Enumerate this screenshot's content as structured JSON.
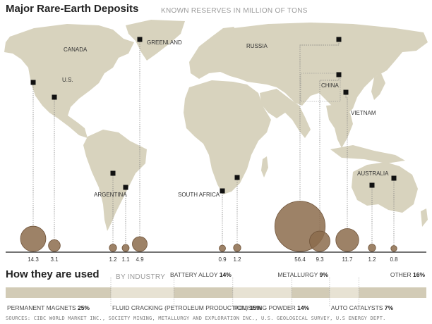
{
  "header": {
    "title": "Major Rare-Earth Deposits",
    "subtitle": "KNOWN RESERVES IN MILLION OF TONS"
  },
  "uses": {
    "title": "How they are used",
    "subtitle": "BY INDUSTRY"
  },
  "source": "SOURCES: CIBC WORLD MARKET INC., SOCIETY MINING, METALLURGY AND EXPLORATION INC., U.S. GEOLOGICAL SURVEY, U.S ENERGY DEPT.",
  "colors": {
    "land": "#d8d3be",
    "bubble": "#8c6c4c",
    "bubble_edge": "#6e5238",
    "marker": "#111111",
    "bar_segments": [
      "#d2cbb6",
      "#e7e2d3",
      "#d2cbb6",
      "#e7e2d3",
      "#d2cbb6",
      "#e7e2d3",
      "#d2cbb6"
    ]
  },
  "chart_data": [
    {
      "type": "bubble-map",
      "title": "Major Rare-Earth Deposits",
      "subtitle": "KNOWN RESERVES IN MILLION OF TONS",
      "region_labels": [
        "CANADA",
        "U.S.",
        "GREENLAND",
        "RUSSIA",
        "CHINA",
        "VIETNAM",
        "ARGENTINA",
        "SOUTH AFRICA",
        "AUSTRALIA"
      ],
      "values": [
        14.3,
        3.1,
        1.2,
        1.1,
        4.9,
        0.9,
        1.2,
        56.4,
        9.3,
        11.7,
        1.2,
        0.8
      ],
      "value_labels": [
        "14.3",
        "3.1",
        "1.2",
        "1.1",
        "4.9",
        "0.9",
        "1.2",
        "56.4",
        "9.3",
        "11.7",
        "1.2",
        "0.8"
      ]
    },
    {
      "type": "bar",
      "orientation": "horizontal-stacked",
      "title": "How they are used",
      "subtitle": "BY INDUSTRY",
      "categories": [
        "PERMANENT MAGNETS",
        "FLUID CRACKING (PETROLEUM PRODUCTION)",
        "BATTERY ALLOY",
        "POLISHING POWDER",
        "METALLURGY",
        "AUTO CATALYSTS",
        "OTHER"
      ],
      "values": [
        25,
        15,
        14,
        14,
        9,
        7,
        16
      ],
      "value_labels": [
        "25%",
        "15%",
        "14%",
        "14%",
        "9%",
        "7%",
        "16%"
      ],
      "unit": "%"
    }
  ]
}
